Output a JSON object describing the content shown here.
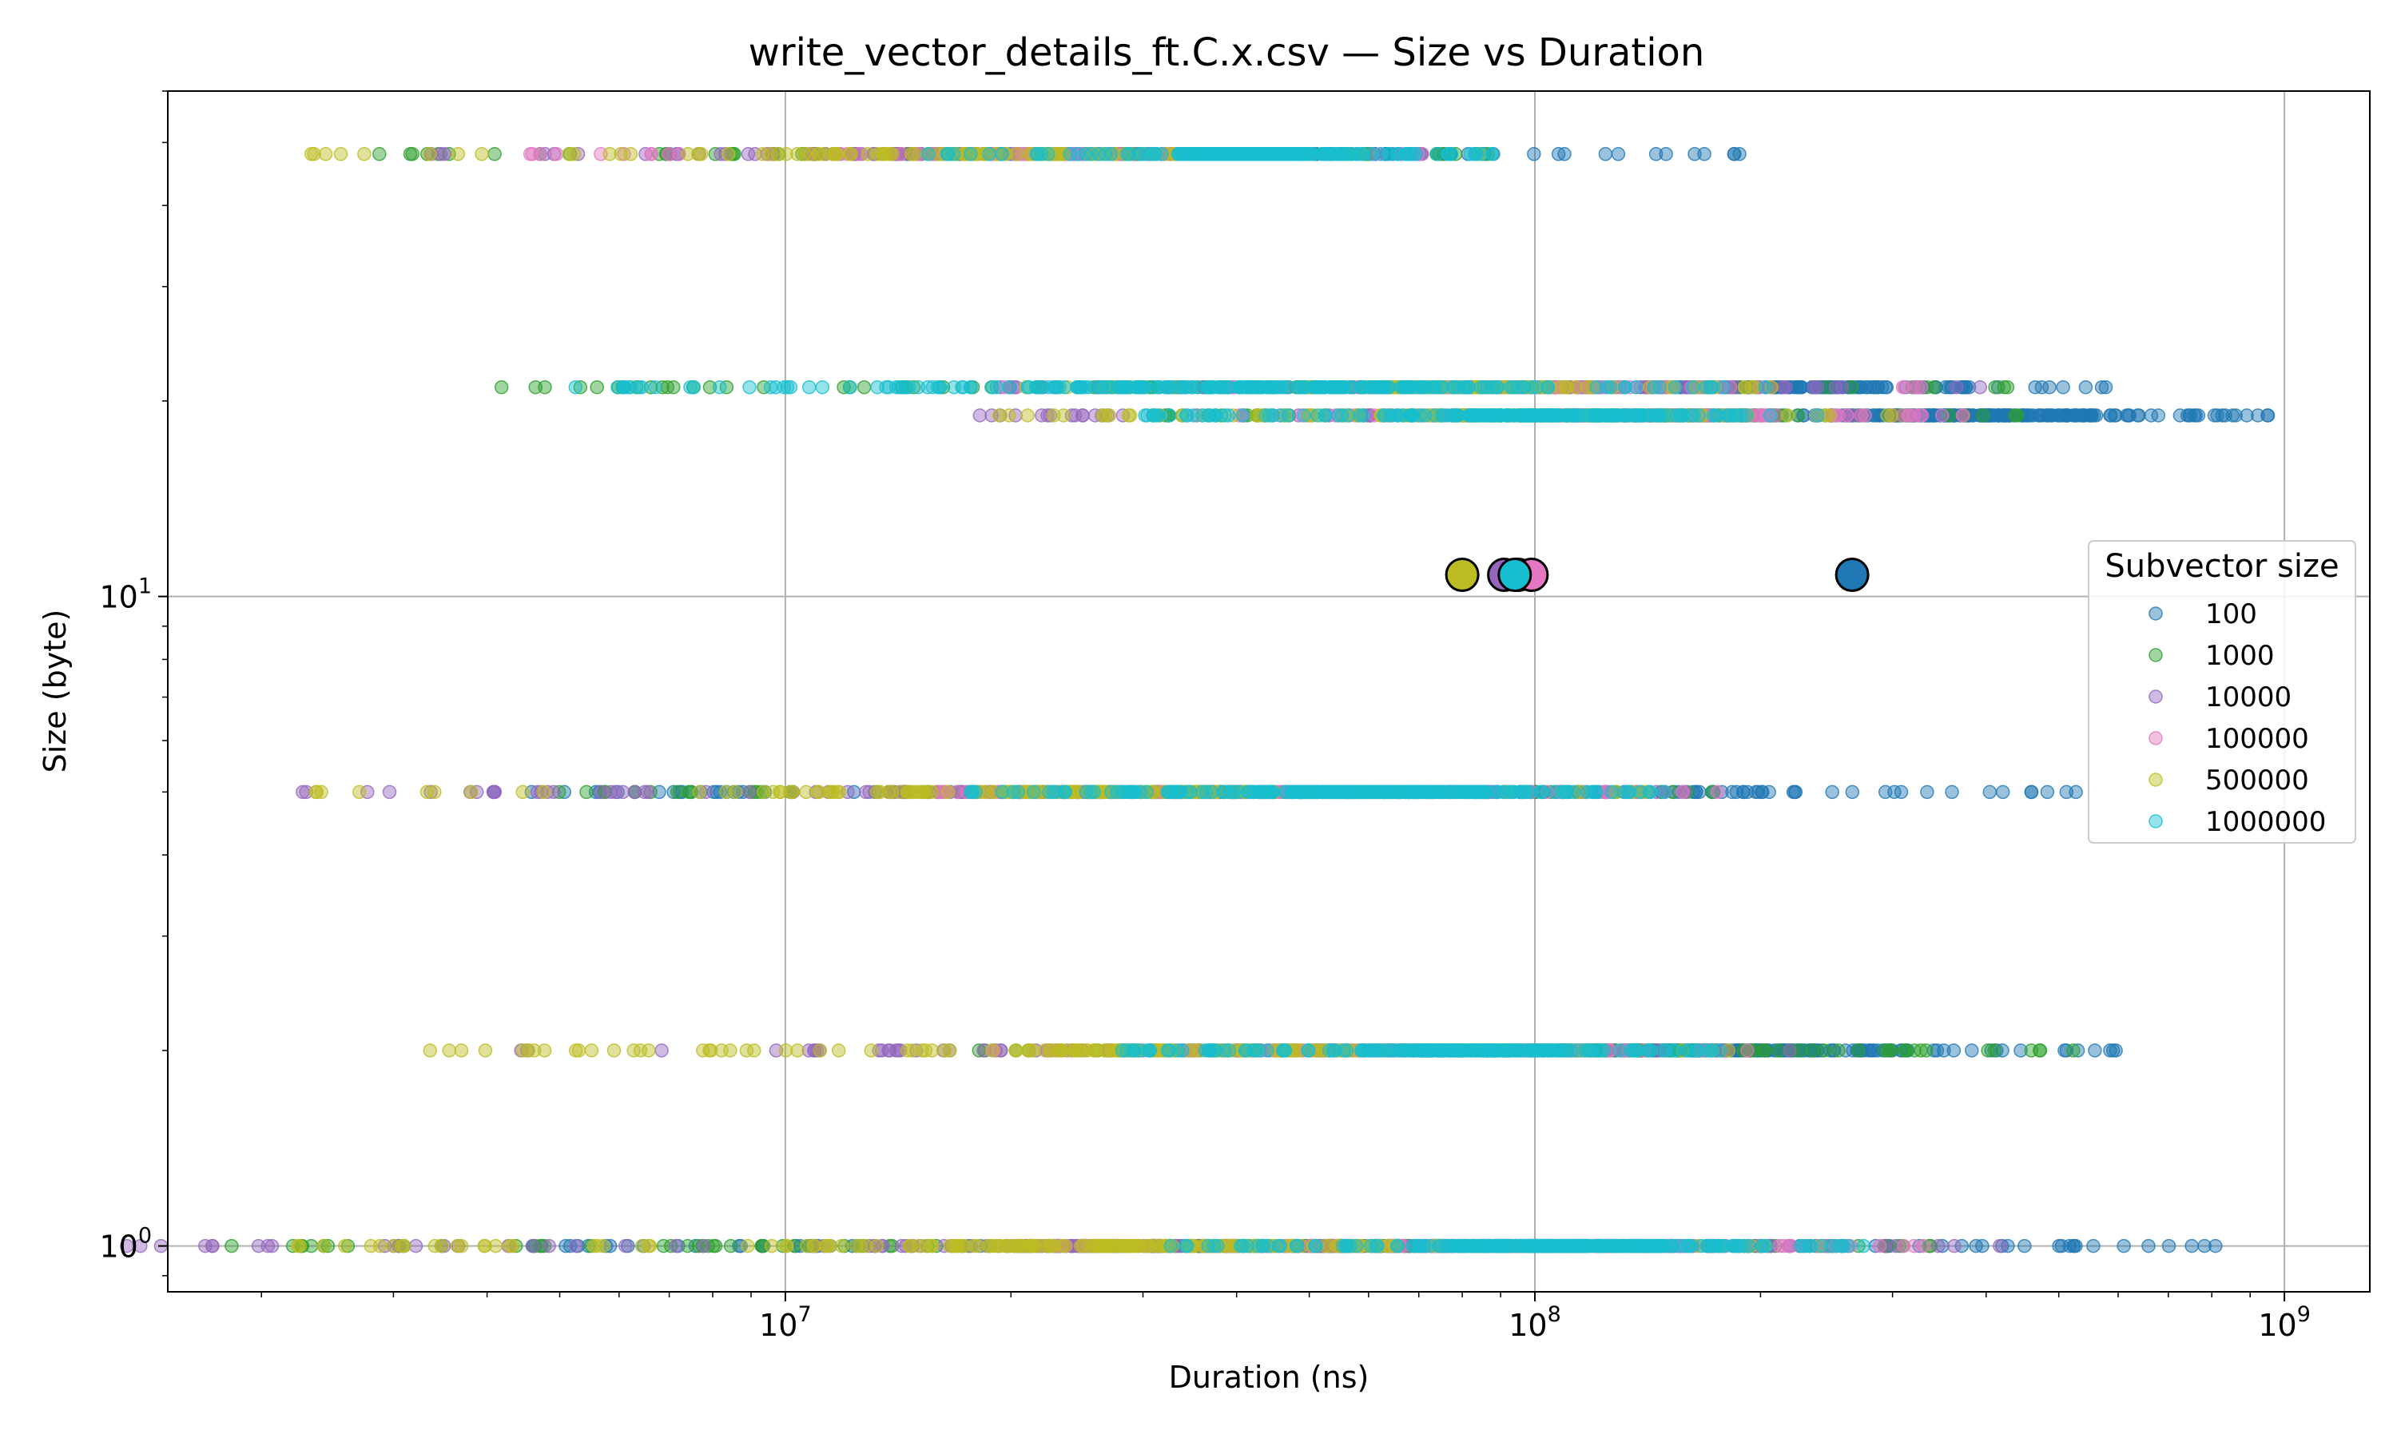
{
  "chart_data": {
    "type": "scatter",
    "title": "write_vector_details_ft.C.x.csv — Size vs Duration",
    "xlabel": "Duration (ns)",
    "ylabel": "Size (byte)",
    "xscale": "log",
    "yscale": "log",
    "xlim": [
      1500000,
      1300000000
    ],
    "ylim": [
      0.85,
      60
    ],
    "grid": true,
    "x_ticks": [
      {
        "value": 10000000,
        "base": "10",
        "exp": "7"
      },
      {
        "value": 100000000,
        "base": "10",
        "exp": "8"
      },
      {
        "value": 1000000000,
        "base": "10",
        "exp": "9"
      }
    ],
    "y_ticks": [
      {
        "value": 1,
        "base": "10",
        "exp": "0"
      },
      {
        "value": 10,
        "base": "10",
        "exp": "1"
      }
    ],
    "size_levels": [
      1,
      2,
      5,
      19,
      21,
      48
    ],
    "legend": {
      "title": "Subvector size",
      "placement": "right"
    },
    "series": [
      {
        "name": "100",
        "color": "#1f77b4",
        "ranges": [
          {
            "y": 48,
            "xmin": 7000000,
            "xmax": 190000000,
            "n": 130
          },
          {
            "y": 21,
            "xmin": 60000000,
            "xmax": 620000000,
            "n": 150
          },
          {
            "y": 19,
            "xmin": 110000000,
            "xmax": 960000000,
            "n": 260
          },
          {
            "y": 5,
            "xmin": 3800000,
            "xmax": 570000000,
            "n": 220
          },
          {
            "y": 2,
            "xmin": 40000000,
            "xmax": 600000000,
            "n": 200
          },
          {
            "y": 1,
            "xmin": 4400000,
            "xmax": 850000000,
            "n": 300
          }
        ],
        "mean": {
          "x": 265000000,
          "y": 10.8
        }
      },
      {
        "name": "1000",
        "color": "#2ca02c",
        "ranges": [
          {
            "y": 48,
            "xmin": 2600000,
            "xmax": 110000000,
            "n": 110
          },
          {
            "y": 21,
            "xmin": 3700000,
            "xmax": 460000000,
            "n": 150
          },
          {
            "y": 19,
            "xmin": 30000000,
            "xmax": 450000000,
            "n": 150
          },
          {
            "y": 5,
            "xmin": 4000000,
            "xmax": 180000000,
            "n": 150
          },
          {
            "y": 2,
            "xmin": 17000000,
            "xmax": 550000000,
            "n": 150
          },
          {
            "y": 1,
            "xmin": 1800000,
            "xmax": 420000000,
            "n": 200
          }
        ],
        "mean": {
          "x": 95000000,
          "y": 10.8
        }
      },
      {
        "name": "10000",
        "color": "#9467bd",
        "ranges": [
          {
            "y": 48,
            "xmin": 3000000,
            "xmax": 90000000,
            "n": 100
          },
          {
            "y": 21,
            "xmin": 19000000,
            "xmax": 400000000,
            "n": 120
          },
          {
            "y": 19,
            "xmin": 18000000,
            "xmax": 400000000,
            "n": 120
          },
          {
            "y": 5,
            "xmin": 2100000,
            "xmax": 200000000,
            "n": 150
          },
          {
            "y": 2,
            "xmin": 4100000,
            "xmax": 250000000,
            "n": 130
          },
          {
            "y": 1,
            "xmin": 1300000,
            "xmax": 420000000,
            "n": 200
          }
        ],
        "mean": {
          "x": 91000000,
          "y": 10.8
        }
      },
      {
        "name": "100000",
        "color": "#e377c2",
        "ranges": [
          {
            "y": 48,
            "xmin": 4300000,
            "xmax": 80000000,
            "n": 80
          },
          {
            "y": 21,
            "xmin": 17000000,
            "xmax": 350000000,
            "n": 100
          },
          {
            "y": 19,
            "xmin": 40000000,
            "xmax": 380000000,
            "n": 120
          },
          {
            "y": 5,
            "xmin": 15000000,
            "xmax": 180000000,
            "n": 120
          },
          {
            "y": 2,
            "xmin": 18000000,
            "xmax": 200000000,
            "n": 100
          },
          {
            "y": 1,
            "xmin": 20000000,
            "xmax": 350000000,
            "n": 200
          }
        ],
        "mean": {
          "x": 99000000,
          "y": 10.8
        }
      },
      {
        "name": "500000",
        "color": "#bcbd22",
        "ranges": [
          {
            "y": 48,
            "xmin": 2000000,
            "xmax": 95000000,
            "n": 110
          },
          {
            "y": 21,
            "xmin": 20000000,
            "xmax": 230000000,
            "n": 110
          },
          {
            "y": 19,
            "xmin": 19000000,
            "xmax": 300000000,
            "n": 120
          },
          {
            "y": 5,
            "xmin": 2000000,
            "xmax": 150000000,
            "n": 150
          },
          {
            "y": 2,
            "xmin": 3200000,
            "xmax": 210000000,
            "n": 150
          },
          {
            "y": 1,
            "xmin": 1950000,
            "xmax": 250000000,
            "n": 200
          }
        ],
        "mean": {
          "x": 80000000,
          "y": 10.8
        }
      },
      {
        "name": "1000000",
        "color": "#17becf",
        "ranges": [
          {
            "y": 48,
            "xmin": 15000000,
            "xmax": 90000000,
            "n": 200
          },
          {
            "y": 21,
            "xmin": 5200000,
            "xmax": 220000000,
            "n": 250
          },
          {
            "y": 19,
            "xmin": 30000000,
            "xmax": 250000000,
            "n": 250
          },
          {
            "y": 5,
            "xmin": 17000000,
            "xmax": 160000000,
            "n": 280
          },
          {
            "y": 2,
            "xmin": 28000000,
            "xmax": 180000000,
            "n": 250
          },
          {
            "y": 1,
            "xmin": 30000000,
            "xmax": 280000000,
            "n": 280
          }
        ],
        "mean": {
          "x": 94000000,
          "y": 10.8
        }
      }
    ]
  }
}
